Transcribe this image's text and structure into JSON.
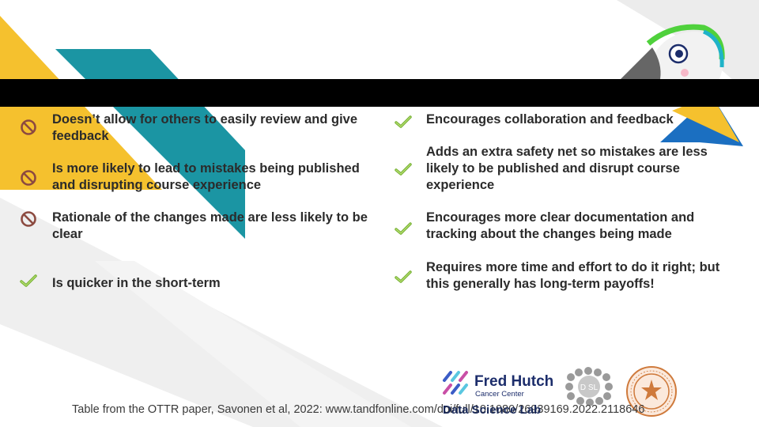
{
  "slide": {
    "cons": [
      {
        "icon": "prohibited-icon",
        "text": "Doesn’t allow for others to easily review and give feedback"
      },
      {
        "icon": "prohibited-icon",
        "text": "Is more likely to lead to mistakes being published and disrupting course experience"
      },
      {
        "icon": "prohibited-icon",
        "text": "Rationale of the changes made are less likely to be clear"
      },
      {
        "icon": "checkmark-icon",
        "text": "Is quicker in the short-term"
      }
    ],
    "pros": [
      {
        "icon": "checkmark-icon",
        "text": "Encourages collaboration and feedback"
      },
      {
        "icon": "checkmark-icon",
        "text": "Adds an extra safety net so mistakes are less likely to be published and disrupt course experience"
      },
      {
        "icon": "checkmark-icon",
        "text": "Encourages more clear documentation and tracking about the changes being made"
      },
      {
        "icon": "checkmark-icon",
        "text": "Requires more time and effort to do it right; but this generally has long-term payoffs!"
      }
    ],
    "caption": "Table from the OTTR paper, Savonen et al, 2022: www.tandfonline.com/doi/full/10.1080/26939169.2022.2118646",
    "logos": {
      "fred_hutch_name": "Fred Hutch",
      "fred_hutch_sub": "Cancer Center",
      "dsl_label": "Data Science Lab"
    }
  },
  "colors": {
    "yellow": "#f5c12e",
    "teal": "#1b95a3",
    "grey": "#e6e6e6",
    "prohibited": "#8c4a40",
    "check": "#7ab33a"
  }
}
